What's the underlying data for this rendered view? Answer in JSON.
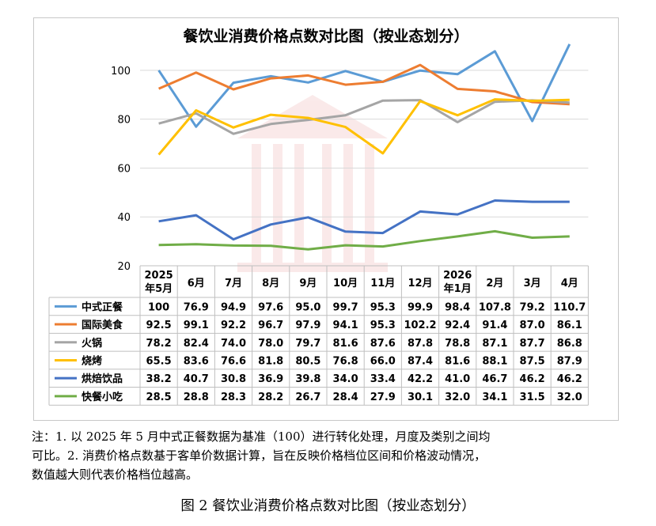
{
  "chart_data": {
    "type": "line",
    "title": "餐饮业消费价格点数对比图（按业态划分）",
    "categories": [
      "2025\n年5月",
      "6月",
      "7月",
      "8月",
      "9月",
      "10月",
      "11月",
      "12月",
      "2026\n年1月",
      "2月",
      "3月",
      "4月"
    ],
    "yticks": [
      20,
      40,
      60,
      80,
      100
    ],
    "ylim": [
      20,
      110
    ],
    "grid": "horizontal",
    "legend": "table",
    "series": [
      {
        "name": "中式正餐",
        "color": "#5b9bd5",
        "labels": [
          "100",
          "76.9",
          "94.9",
          "97.6",
          "95.0",
          "99.7",
          "95.3",
          "99.9",
          "98.4",
          "107.8",
          "79.2",
          "110.7"
        ],
        "values": [
          100,
          76.9,
          94.9,
          97.6,
          95.0,
          99.7,
          95.3,
          99.9,
          98.4,
          107.8,
          79.2,
          110.7
        ]
      },
      {
        "name": "国际美食",
        "color": "#ed7d31",
        "labels": [
          "92.5",
          "99.1",
          "92.2",
          "96.7",
          "97.9",
          "94.1",
          "95.3",
          "102.2",
          "92.4",
          "91.4",
          "87.0",
          "86.1"
        ],
        "values": [
          92.5,
          99.1,
          92.2,
          96.7,
          97.9,
          94.1,
          95.3,
          102.2,
          92.4,
          91.4,
          87.0,
          86.1
        ]
      },
      {
        "name": "火锅",
        "color": "#a5a5a5",
        "labels": [
          "78.2",
          "82.4",
          "74.0",
          "78.0",
          "79.7",
          "81.6",
          "87.6",
          "87.8",
          "78.8",
          "87.1",
          "87.7",
          "86.8"
        ],
        "values": [
          78.2,
          82.4,
          74.0,
          78.0,
          79.7,
          81.6,
          87.6,
          87.8,
          78.8,
          87.1,
          87.7,
          86.8
        ]
      },
      {
        "name": "烧烤",
        "color": "#ffc000",
        "labels": [
          "65.5",
          "83.6",
          "76.6",
          "81.8",
          "80.5",
          "76.8",
          "66.0",
          "87.4",
          "81.6",
          "88.1",
          "87.5",
          "87.9"
        ],
        "values": [
          65.5,
          83.6,
          76.6,
          81.8,
          80.5,
          76.8,
          66.0,
          87.4,
          81.6,
          88.1,
          87.5,
          87.9
        ]
      },
      {
        "name": "烘焙饮品",
        "color": "#4472c4",
        "labels": [
          "38.2",
          "40.7",
          "30.8",
          "36.9",
          "39.8",
          "34.0",
          "33.4",
          "42.2",
          "41.0",
          "46.7",
          "46.2",
          "46.2"
        ],
        "values": [
          38.2,
          40.7,
          30.8,
          36.9,
          39.8,
          34.0,
          33.4,
          42.2,
          41.0,
          46.7,
          46.2,
          46.2
        ]
      },
      {
        "name": "快餐小吃",
        "color": "#70ad47",
        "labels": [
          "28.5",
          "28.8",
          "28.3",
          "28.2",
          "26.7",
          "28.4",
          "27.9",
          "30.1",
          "32.0",
          "34.1",
          "31.5",
          "32.0"
        ],
        "values": [
          28.5,
          28.8,
          28.3,
          28.2,
          26.7,
          28.4,
          27.9,
          30.1,
          32.0,
          34.1,
          31.5,
          32.0
        ]
      }
    ]
  },
  "note": {
    "line1": "注：1. 以 2025 年 5 月中式正餐数据为基准（100）进行转化处理，月度及类别之间均",
    "line2": "可比。2. 消费价格点数基于客单价数据计算，旨在反映价格档位区间和价格波动情况，",
    "line3": "数值越大则代表价格档位越高。"
  },
  "caption": "图 2  餐饮业消费价格点数对比图（按业态划分）"
}
